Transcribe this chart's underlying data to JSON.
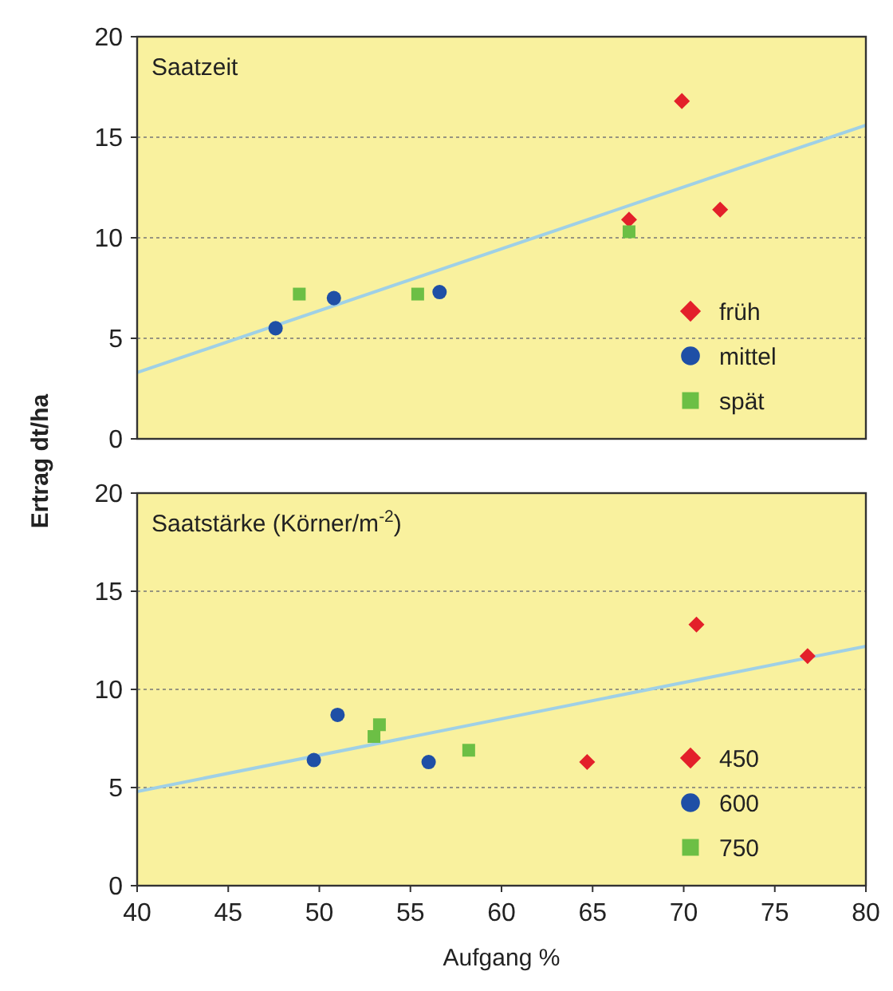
{
  "chart_data": [
    {
      "type": "scatter",
      "title": "Saatzeit",
      "ylabel": "Ertrag dt/ha",
      "xlim": [
        40,
        80
      ],
      "ylim": [
        0,
        20
      ],
      "yticks": [
        0,
        5,
        10,
        15,
        20
      ],
      "grid": "y",
      "legend": "bottom right",
      "tick_labels": "y",
      "series": [
        {
          "name": "früh",
          "type": "scatter",
          "marker": "diamond",
          "color": "#e3202a",
          "x": [
            69.9,
            67.0,
            72.0
          ],
          "values": [
            16.8,
            10.9,
            11.4
          ]
        },
        {
          "name": "mittel",
          "type": "scatter",
          "marker": "circle",
          "color": "#1f4fa6",
          "x": [
            47.6,
            50.8,
            56.6
          ],
          "values": [
            5.5,
            7.0,
            7.3
          ]
        },
        {
          "name": "spät",
          "type": "scatter",
          "marker": "square",
          "color": "#6cbf45",
          "x": [
            48.9,
            55.4,
            67.0
          ],
          "values": [
            7.2,
            7.2,
            10.3
          ]
        },
        {
          "type": "line",
          "marker": "none",
          "color": "#9fd0e6",
          "x": [
            40,
            80
          ],
          "values": [
            3.3,
            15.6
          ]
        }
      ]
    },
    {
      "type": "scatter",
      "title": "Saatstärke (Körner/m$^{-2}$)",
      "xlabel": "Aufgang %",
      "xlim": [
        40,
        80
      ],
      "xticks": [
        40,
        45,
        50,
        55,
        60,
        65,
        70,
        75,
        80
      ],
      "ylim": [
        0,
        20
      ],
      "yticks": [
        0,
        5,
        10,
        15,
        20
      ],
      "grid": "y",
      "legend": "bottom right",
      "series": [
        {
          "name": "450",
          "type": "scatter",
          "marker": "diamond",
          "color": "#e3202a",
          "x": [
            70.7,
            76.8,
            64.7
          ],
          "values": [
            13.3,
            11.7,
            6.3
          ]
        },
        {
          "name": "600",
          "type": "scatter",
          "marker": "circle",
          "color": "#1f4fa6",
          "x": [
            49.7,
            51.0,
            56.0
          ],
          "values": [
            6.4,
            8.7,
            6.3
          ]
        },
        {
          "name": "750",
          "type": "scatter",
          "marker": "square",
          "color": "#6cbf45",
          "x": [
            53.0,
            53.3,
            58.2
          ],
          "values": [
            7.6,
            8.2,
            6.9
          ]
        },
        {
          "type": "line",
          "marker": "none",
          "color": "#9fd0e6",
          "x": [
            40,
            80
          ],
          "values": [
            4.8,
            12.2
          ]
        }
      ]
    }
  ]
}
